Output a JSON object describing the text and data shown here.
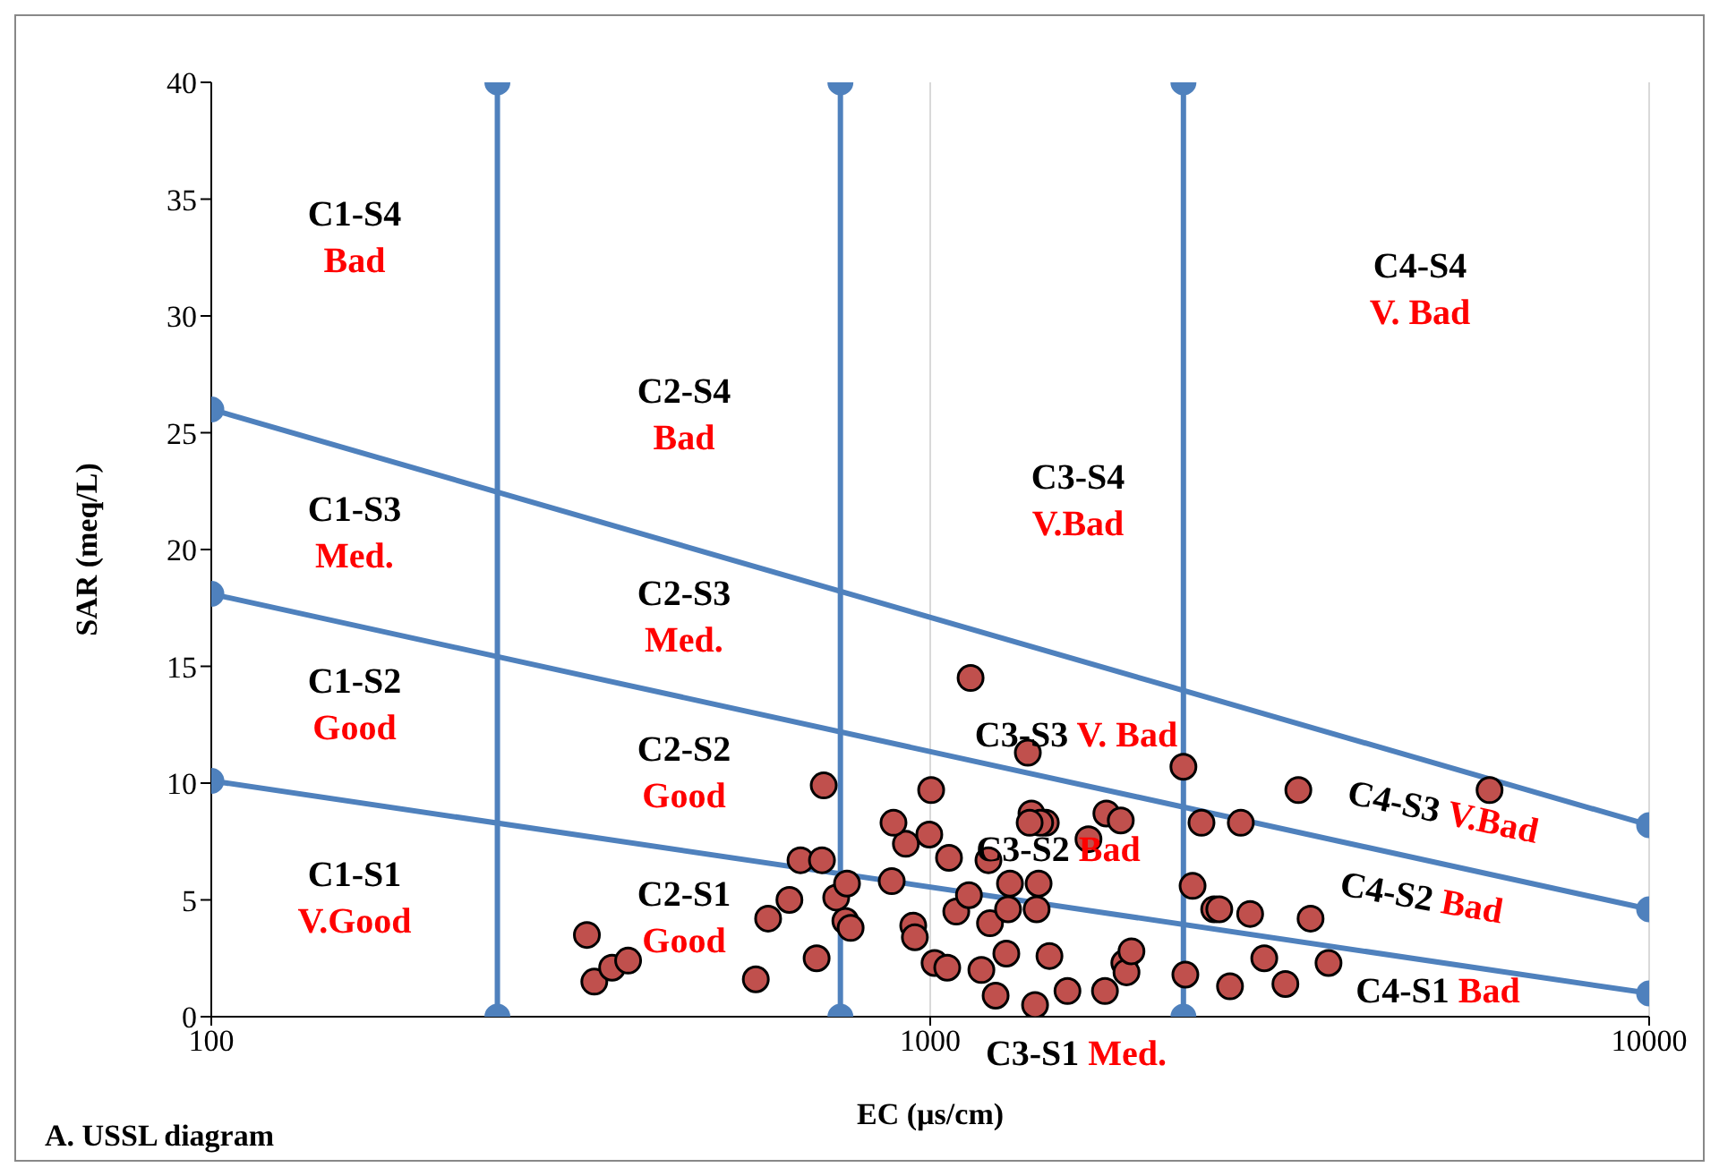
{
  "chart_data": {
    "type": "scatter",
    "xlabel": "EC (µs/cm)",
    "ylabel": "SAR (meq/L)",
    "log": "x",
    "grid": "x",
    "marker": "circle",
    "xlim": [
      100,
      10000
    ],
    "xticks": [
      100,
      1000,
      10000
    ],
    "ylim": [
      0,
      40
    ],
    "yticks": [
      0,
      5,
      10,
      15,
      20,
      25,
      30,
      35,
      40
    ],
    "series": [
      {
        "color": "#c0504d",
        "x": [
          333,
          341,
          361,
          380,
          595,
          637,
          660,
          707,
          572,
          695,
          711,
          740,
          766,
          762,
          775,
          884,
          925,
          997,
          1003,
          889,
          947,
          952,
          1014,
          1056,
          1062,
          1087,
          1132,
          1178,
          1138,
          1205,
          1211,
          1283,
          1276,
          1291,
          1233,
          1399,
          1415,
          1367,
          1383,
          1448,
          1422,
          1465,
          1375,
          1406,
          1552,
          1660,
          1758,
          1841,
          1750,
          1862,
          1875,
          1905,
          2250,
          2264,
          2317,
          2384,
          2483,
          2524,
          2612,
          2704,
          2786,
          2915,
          3119,
          3251,
          3381,
          3581,
          5998
        ],
        "values": [
          3.5,
          1.5,
          2.1,
          2.4,
          4.2,
          5.0,
          6.7,
          6.7,
          1.6,
          2.5,
          9.9,
          5.1,
          5.7,
          4.1,
          3.8,
          5.8,
          7.4,
          7.8,
          9.7,
          8.3,
          3.9,
          3.4,
          2.3,
          2.1,
          6.8,
          4.5,
          5.2,
          2.0,
          14.5,
          6.7,
          4.0,
          4.6,
          2.7,
          5.7,
          0.9,
          0.5,
          5.7,
          11.3,
          8.7,
          8.3,
          8.3,
          2.6,
          8.3,
          4.6,
          1.1,
          7.6,
          8.7,
          8.4,
          1.1,
          2.3,
          1.9,
          2.8,
          10.7,
          1.8,
          5.6,
          8.3,
          4.6,
          4.6,
          1.3,
          8.3,
          4.4,
          2.5,
          1.4,
          9.7,
          4.2,
          2.3,
          9.7
        ]
      },
      {
        "type": "line",
        "color": "#4f81bd",
        "x": [
          250,
          250
        ],
        "values": [
          0,
          40
        ]
      },
      {
        "type": "line",
        "color": "#4f81bd",
        "x": [
          750,
          750
        ],
        "values": [
          0,
          40
        ]
      },
      {
        "type": "line",
        "color": "#4f81bd",
        "x": [
          2250,
          2250
        ],
        "values": [
          0,
          40
        ]
      },
      {
        "type": "line",
        "color": "#4f81bd",
        "x": [
          100,
          10000
        ],
        "values": [
          26,
          8.2
        ]
      },
      {
        "type": "line",
        "color": "#4f81bd",
        "x": [
          100,
          10000
        ],
        "values": [
          18.1,
          4.6
        ]
      },
      {
        "type": "line",
        "color": "#4f81bd",
        "x": [
          100,
          10000
        ],
        "values": [
          10.1,
          1
        ]
      }
    ],
    "annotations": [
      "C1-S4\nBad",
      "C1-S3\nMed.",
      "C1-S2\nGood",
      "C1-S1\nV.Good",
      "C2-S4\nBad",
      "C2-S3\nMed.",
      "C2-S2\nGood",
      "C2-S1\nGood",
      "C3-S4\nV.Bad",
      "C3-S3 V. Bad",
      "C3-S2 Bad",
      "C3-S1 Med.",
      "C4-S4\nV. Bad",
      "C4-S3 V.Bad",
      "C4-S2 Bad",
      "C4-S1 Bad",
      "A. USSL diagram"
    ]
  }
}
